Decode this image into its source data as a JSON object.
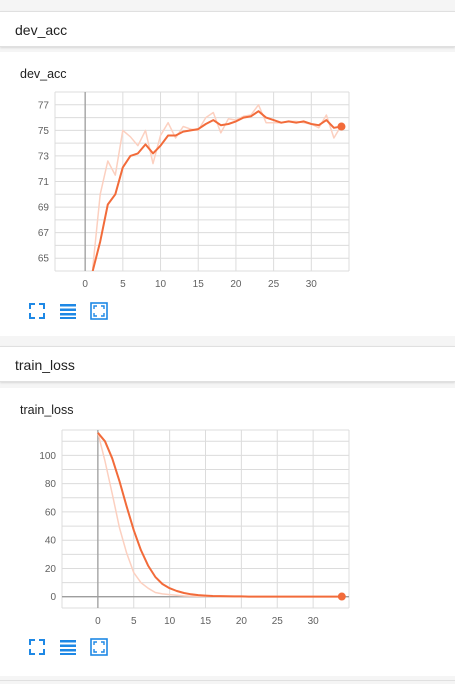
{
  "colors": {
    "accent": "#f26b3a",
    "accent_light": "#fcd0c0",
    "axis": "#9e9e9e",
    "grid": "#dcdcdc",
    "icon": "#1e88e5"
  },
  "sections": [
    {
      "header": "dev_acc",
      "card_title": "dev_acc"
    },
    {
      "header": "train_loss",
      "card_title": "train_loss"
    }
  ],
  "icons": [
    "fullscreen-icon",
    "data-table-icon",
    "fit-domain-icon"
  ],
  "chart_data": [
    {
      "type": "line",
      "title": "dev_acc",
      "xlim": [
        -4,
        35
      ],
      "ylim": [
        64,
        78
      ],
      "xticks": [
        0,
        5,
        10,
        15,
        20,
        25,
        30
      ],
      "yticks": [
        65,
        67,
        69,
        71,
        73,
        75,
        77
      ],
      "series": [
        {
          "role": "raw",
          "x": [
            1,
            2,
            3,
            4,
            5,
            6,
            7,
            8,
            9,
            10,
            11,
            12,
            13,
            14,
            15,
            16,
            17,
            18,
            19,
            20,
            21,
            22,
            23,
            24,
            25,
            26,
            27,
            28,
            29,
            30,
            31,
            32,
            33,
            34
          ],
          "y": [
            64.2,
            70,
            72.6,
            71.5,
            75,
            74.5,
            73.8,
            75,
            72.4,
            74.6,
            75.6,
            74.4,
            75.3,
            75.1,
            75,
            76,
            76.4,
            74.8,
            75.9,
            75.8,
            76.1,
            76.2,
            77,
            75.6,
            75.6,
            75.6,
            75.7,
            75.7,
            75.6,
            75.5,
            75.2,
            76.2,
            74.4,
            75.4
          ]
        },
        {
          "role": "smoothed",
          "x": [
            1,
            2,
            3,
            4,
            5,
            6,
            7,
            8,
            9,
            10,
            11,
            12,
            13,
            14,
            15,
            16,
            17,
            18,
            19,
            20,
            21,
            22,
            23,
            24,
            25,
            26,
            27,
            28,
            29,
            30,
            31,
            32,
            33,
            34
          ],
          "y": [
            64,
            66.3,
            69.2,
            70,
            72.1,
            73,
            73.2,
            73.9,
            73.2,
            73.8,
            74.6,
            74.6,
            74.9,
            75,
            75.1,
            75.5,
            75.8,
            75.4,
            75.5,
            75.7,
            76,
            76.1,
            76.5,
            76,
            75.8,
            75.6,
            75.7,
            75.6,
            75.7,
            75.5,
            75.4,
            75.8,
            75.2,
            75.3
          ]
        }
      ]
    },
    {
      "type": "line",
      "title": "train_loss",
      "xlim": [
        -5,
        35
      ],
      "ylim": [
        -8,
        118
      ],
      "xticks": [
        0,
        5,
        10,
        15,
        20,
        25,
        30
      ],
      "yticks": [
        0,
        20,
        40,
        60,
        80,
        100
      ],
      "series": [
        {
          "role": "raw",
          "x": [
            0,
            1,
            2,
            3,
            4,
            5,
            6,
            7,
            8,
            9,
            10,
            11,
            12,
            13,
            14,
            15,
            16,
            17,
            18,
            19,
            20,
            21,
            22,
            23,
            24,
            25,
            26,
            27,
            28,
            29,
            30,
            31,
            32,
            33,
            34
          ],
          "y": [
            116,
            96,
            73,
            49,
            31,
            17,
            10,
            6,
            3,
            2,
            1.5,
            1,
            0.6,
            0.4,
            0.3,
            0.2,
            0.2,
            0.1,
            0.1,
            0.1,
            0.1,
            0.1,
            0.1,
            0.1,
            0.1,
            0.1,
            0.1,
            0.1,
            0.1,
            0.1,
            0.1,
            0.1,
            0.1,
            0.1,
            0.1
          ]
        },
        {
          "role": "smoothed",
          "x": [
            0,
            1,
            2,
            3,
            4,
            5,
            6,
            7,
            8,
            9,
            10,
            11,
            12,
            13,
            14,
            15,
            16,
            17,
            18,
            19,
            20,
            21,
            22,
            23,
            24,
            25,
            26,
            27,
            28,
            29,
            30,
            31,
            32,
            33,
            34
          ],
          "y": [
            116,
            110,
            98,
            82,
            64,
            47,
            33,
            22,
            14,
            9,
            6,
            4,
            2.6,
            1.7,
            1.1,
            0.8,
            0.5,
            0.4,
            0.3,
            0.2,
            0.2,
            0.1,
            0.1,
            0.1,
            0.1,
            0.1,
            0.1,
            0.1,
            0.1,
            0.1,
            0.1,
            0.1,
            0.1,
            0.1,
            0.1
          ]
        }
      ]
    }
  ]
}
